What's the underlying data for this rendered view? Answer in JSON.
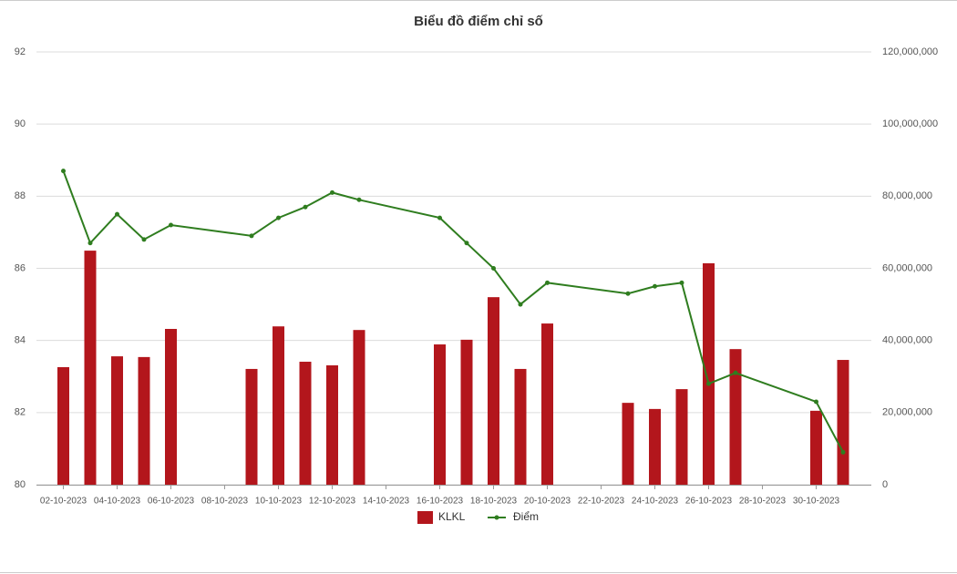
{
  "chart_data": {
    "type": "bar",
    "title": "Biểu đồ điểm chỉ số",
    "x": [
      "02-10-2023",
      "03-10-2023",
      "04-10-2023",
      "05-10-2023",
      "06-10-2023",
      "09-10-2023",
      "10-10-2023",
      "11-10-2023",
      "12-10-2023",
      "13-10-2023",
      "16-10-2023",
      "17-10-2023",
      "18-10-2023",
      "19-10-2023",
      "20-10-2023",
      "23-10-2023",
      "24-10-2023",
      "25-10-2023",
      "26-10-2023",
      "27-10-2023",
      "30-10-2023",
      "31-10-2023"
    ],
    "xticks": [
      "02-10-2023",
      "04-10-2023",
      "06-10-2023",
      "08-10-2023",
      "10-10-2023",
      "12-10-2023",
      "14-10-2023",
      "16-10-2023",
      "18-10-2023",
      "20-10-2023",
      "22-10-2023",
      "24-10-2023",
      "26-10-2023",
      "28-10-2023",
      "30-10-2023"
    ],
    "series": [
      {
        "name": "KLKL",
        "type": "bar",
        "axis": "y2",
        "color": "#b3161c",
        "values": [
          32600000,
          64900000,
          35600000,
          35400000,
          43200000,
          32100000,
          43900000,
          34100000,
          33100000,
          42900000,
          38900000,
          40200000,
          52000000,
          32100000,
          44700000,
          22700000,
          21000000,
          26500000,
          61400000,
          37600000,
          20500000,
          34600000
        ]
      },
      {
        "name": "Điểm",
        "type": "line",
        "color": "#2f7d1f",
        "values": [
          88.7,
          86.7,
          87.5,
          86.8,
          87.2,
          86.9,
          87.4,
          87.7,
          88.1,
          87.9,
          87.4,
          86.7,
          86.0,
          85.0,
          85.6,
          85.3,
          85.5,
          85.6,
          82.8,
          83.1,
          82.3,
          80.9
        ]
      }
    ],
    "ylim": [
      80,
      92
    ],
    "yticks": [
      80,
      82,
      84,
      86,
      88,
      90,
      92
    ],
    "y2lim": [
      0,
      120000000
    ],
    "y2ticks": [
      0,
      {
        "value": 20000000,
        "label": "20,000,000"
      },
      {
        "value": 40000000,
        "label": "40,000,000"
      },
      {
        "value": 60000000,
        "label": "60,000,000"
      },
      {
        "value": 80000000,
        "label": "80,000,000"
      },
      {
        "value": 100000000,
        "label": "100,000,000"
      },
      {
        "value": 120000000,
        "label": "120,000,000"
      }
    ],
    "grid": true,
    "legend": "bottom"
  }
}
